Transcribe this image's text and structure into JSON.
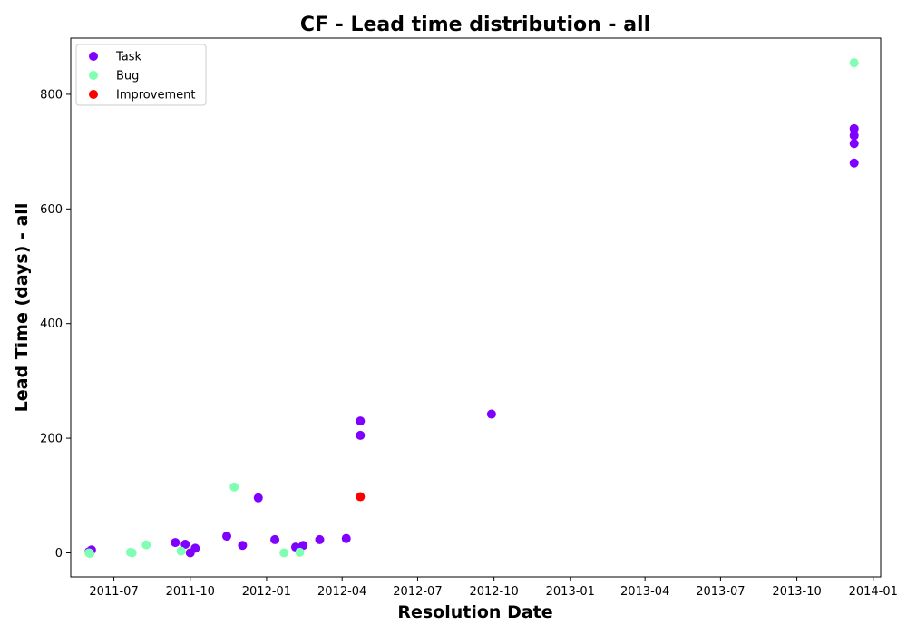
{
  "chart_data": {
    "type": "scatter",
    "title": "CF - Lead time distribution - all",
    "xlabel": "Resolution Date",
    "ylabel": "Lead Time (days) - all",
    "x_type": "date",
    "xlim": [
      "2011-05-10",
      "2014-01-10"
    ],
    "ylim": [
      -42,
      898
    ],
    "x_ticks": [
      "2011-07-01",
      "2011-10-01",
      "2012-01-01",
      "2012-04-01",
      "2012-07-01",
      "2012-10-01",
      "2013-01-01",
      "2013-04-01",
      "2013-07-01",
      "2013-10-01",
      "2014-01-01"
    ],
    "x_tick_labels": [
      "2011-07",
      "2011-10",
      "2012-01",
      "2012-04",
      "2012-07",
      "2012-10",
      "2013-01",
      "2013-04",
      "2013-07",
      "2013-10",
      "2014-01"
    ],
    "y_ticks": [
      0,
      200,
      400,
      600,
      800
    ],
    "grid": false,
    "legend_position": "top-left",
    "series": [
      {
        "name": "Task",
        "color": "#8000ff",
        "points": [
          {
            "x": "2011-06-01",
            "y": 2
          },
          {
            "x": "2011-06-04",
            "y": 5
          },
          {
            "x": "2011-09-13",
            "y": 18
          },
          {
            "x": "2011-09-25",
            "y": 15
          },
          {
            "x": "2011-10-01",
            "y": 0
          },
          {
            "x": "2011-10-07",
            "y": 8
          },
          {
            "x": "2011-11-14",
            "y": 29
          },
          {
            "x": "2011-12-03",
            "y": 13
          },
          {
            "x": "2011-12-22",
            "y": 96
          },
          {
            "x": "2012-01-11",
            "y": 23
          },
          {
            "x": "2012-02-05",
            "y": 10
          },
          {
            "x": "2012-02-14",
            "y": 13
          },
          {
            "x": "2012-03-05",
            "y": 23
          },
          {
            "x": "2012-04-06",
            "y": 25
          },
          {
            "x": "2012-04-23",
            "y": 230
          },
          {
            "x": "2012-04-23",
            "y": 205
          },
          {
            "x": "2012-09-28",
            "y": 242
          },
          {
            "x": "2013-12-09",
            "y": 740
          },
          {
            "x": "2013-12-09",
            "y": 728
          },
          {
            "x": "2013-12-09",
            "y": 714
          },
          {
            "x": "2013-12-09",
            "y": 680
          }
        ]
      },
      {
        "name": "Bug",
        "color": "#80ffb4",
        "points": [
          {
            "x": "2011-06-01",
            "y": 0
          },
          {
            "x": "2011-06-02",
            "y": -1
          },
          {
            "x": "2011-07-21",
            "y": 1
          },
          {
            "x": "2011-07-23",
            "y": 0
          },
          {
            "x": "2011-08-09",
            "y": 14
          },
          {
            "x": "2011-09-20",
            "y": 3
          },
          {
            "x": "2011-11-23",
            "y": 115
          },
          {
            "x": "2012-01-22",
            "y": 0
          },
          {
            "x": "2012-02-10",
            "y": 1
          },
          {
            "x": "2013-12-09",
            "y": 855
          }
        ]
      },
      {
        "name": "Improvement",
        "color": "#ff0000",
        "points": [
          {
            "x": "2012-04-23",
            "y": 98
          }
        ]
      }
    ]
  }
}
